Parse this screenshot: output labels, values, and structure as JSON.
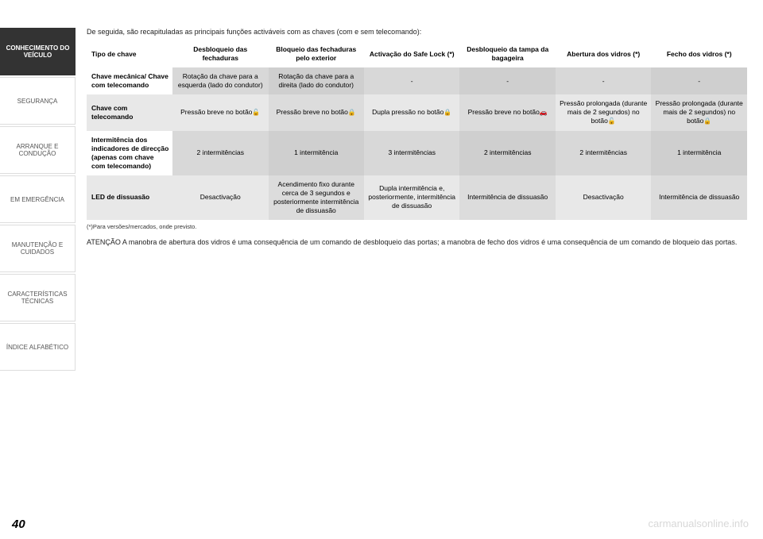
{
  "page_number": "40",
  "watermark": "carmanualsonline.info",
  "sidebar": {
    "items": [
      {
        "label": "CONHECIMENTO DO VEÍCULO",
        "active": true
      },
      {
        "label": "SEGURANÇA",
        "active": false
      },
      {
        "label": "ARRANQUE E CONDUÇÃO",
        "active": false
      },
      {
        "label": "EM EMERGÊNCIA",
        "active": false
      },
      {
        "label": "MANUTENÇÃO E CUIDADOS",
        "active": false
      },
      {
        "label": "CARACTERÍSTICAS TÉCNICAS",
        "active": false
      },
      {
        "label": "ÍNDICE ALFABÉTICO",
        "active": false
      }
    ]
  },
  "intro": "De seguida, são recapituladas as principais funções activáveis com as chaves (com e sem telecomando):",
  "table": {
    "headers": [
      "Tipo de chave",
      "Desbloqueio das fechaduras",
      "Bloqueio das fechaduras pelo exterior",
      "Activação do Safe Lock (*)",
      "Desbloqueio da tampa da bagageira",
      "Abertura dos vidros (*)",
      "Fecho dos vidros (*)"
    ],
    "rows": [
      {
        "c0": "Chave mecânica/ Chave com telecomando",
        "c1": "Rotação da chave para a esquerda (lado do condutor)",
        "c2": "Rotação da chave para a direita (lado do condutor)",
        "c3": "-",
        "c4": "-",
        "c5": "-",
        "c6": "-"
      },
      {
        "c0": "Chave com telecomando",
        "c1": "Pressão breve no botão",
        "c1_icon": "unlock",
        "c2": "Pressão breve no botão",
        "c2_icon": "lock",
        "c3": "Dupla pressão no botão",
        "c3_icon": "lock",
        "c4": "Pressão breve no botão",
        "c4_icon": "trunk",
        "c5": "Pressão prolongada (durante mais de 2 segundos) no botão",
        "c5_icon": "unlock",
        "c6": "Pressão prolongada (durante mais de 2 segundos) no botão",
        "c6_icon": "lock"
      },
      {
        "c0": "Intermitência dos indicadores de direcção (apenas com chave com telecomando)",
        "c1": "2 intermitências",
        "c2": "1 intermitência",
        "c3": "3 intermitências",
        "c4": "2 intermitências",
        "c5": "2 intermitências",
        "c6": "1 intermitência"
      },
      {
        "c0": "LED de dissuasão",
        "c1": "Desactivação",
        "c2": "Acendimento fixo durante cerca de 3 segundos e posteriormente intermitência de dissuasão",
        "c3": "Dupla intermitência e, posteriormente, intermitência de dissuasão",
        "c4": "Intermitência de dissuasão",
        "c5": "Desactivação",
        "c6": "Intermitência de dissuasão"
      }
    ]
  },
  "footnote": "(*)Para versões/mercados, onde previsto.",
  "note": "ATENÇÃO A manobra de abertura dos vidros é uma consequência de um comando de desbloqueio das portas; a manobra de fecho dos vidros é uma consequência de um comando de bloqueio das portas.",
  "colors": {
    "sidebar_active_bg": "#333333",
    "sidebar_active_fg": "#ffffff",
    "sidebar_inactive_fg": "#555555",
    "cell_bg_a": "#d8d8d8",
    "cell_bg_b": "#cfcfcf",
    "watermark_color": "#d8d8d8"
  }
}
